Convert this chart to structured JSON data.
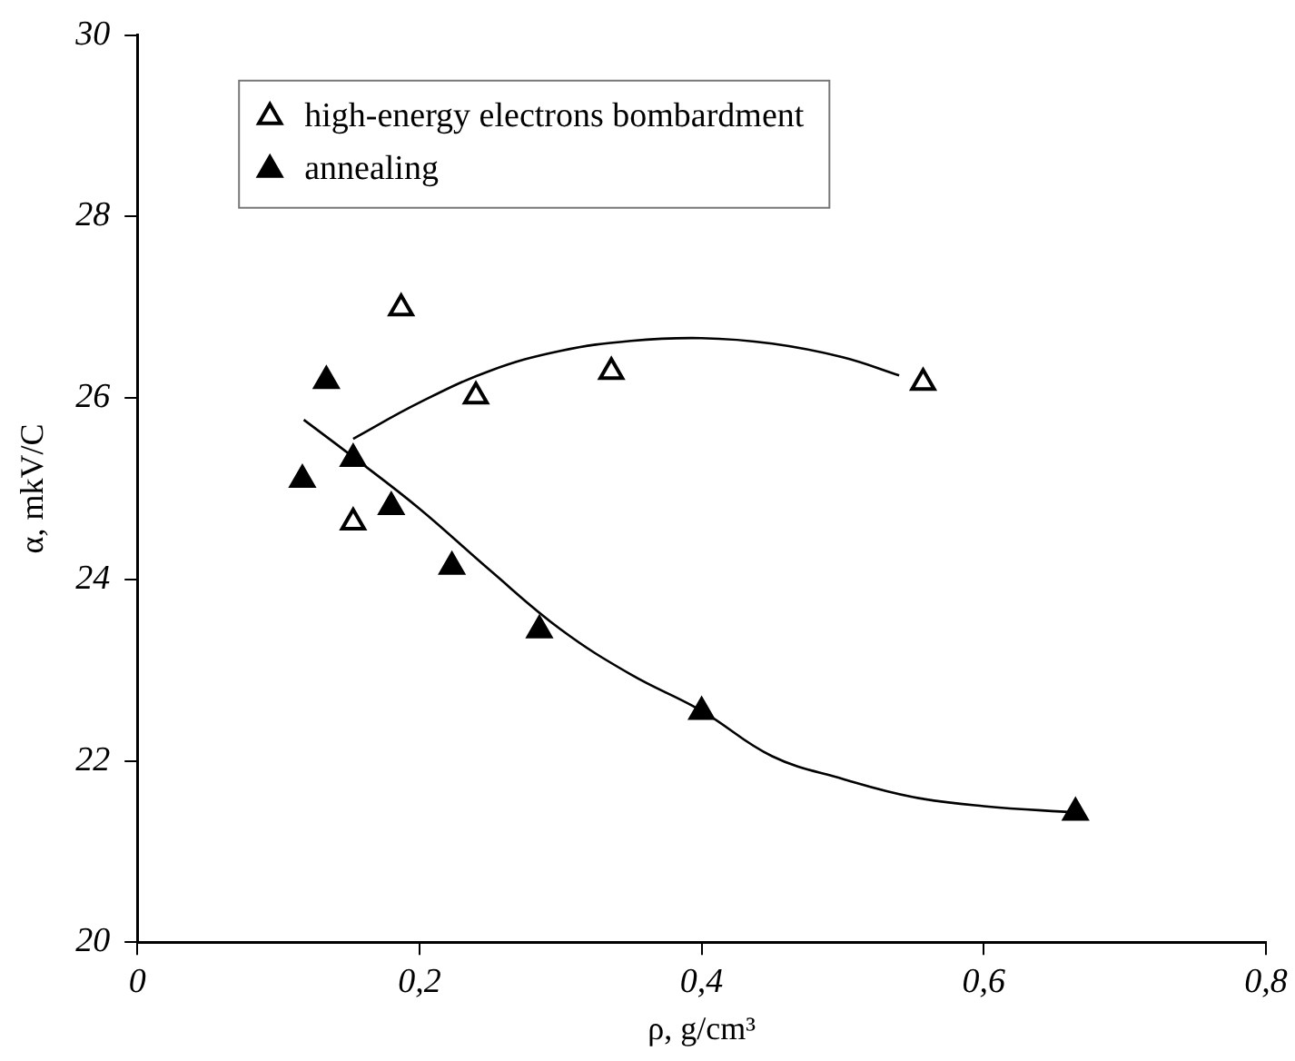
{
  "chart_data": {
    "type": "scatter",
    "xlabel": "ρ, g/cm³",
    "ylabel": "α, mkV/C",
    "xlim": [
      0,
      0.8
    ],
    "xticks": [
      {
        "value": 0,
        "label": "0"
      },
      {
        "value": 0.2,
        "label": "0,2"
      },
      {
        "value": 0.4,
        "label": "0,4"
      },
      {
        "value": 0.6,
        "label": "0,6"
      },
      {
        "value": 0.8,
        "label": "0,8"
      }
    ],
    "ylim": [
      20,
      30
    ],
    "yticks": [
      20,
      22,
      24,
      26,
      28,
      30
    ],
    "grid": false,
    "legend": "top",
    "marker": "triangle",
    "series": [
      {
        "name": "high-energy electrons bombardment",
        "color": "#ffffff",
        "x": [
          0.153,
          0.187,
          0.24,
          0.336,
          0.557
        ],
        "values": [
          24.63,
          26.99,
          26.02,
          26.29,
          26.17
        ]
      },
      {
        "name": "annealing",
        "color": "#000000",
        "x": [
          0.117,
          0.134,
          0.153,
          0.18,
          0.223,
          0.285,
          0.4,
          0.665
        ],
        "values": [
          25.1,
          26.19,
          25.33,
          24.8,
          24.14,
          23.44,
          22.54,
          21.43
        ]
      },
      {
        "type": "line",
        "color": "#000000",
        "marker": "none",
        "x": [
          0.153,
          0.2,
          0.25,
          0.3,
          0.35,
          0.4,
          0.45,
          0.5,
          0.54
        ],
        "values": [
          25.55,
          25.95,
          26.3,
          26.52,
          26.63,
          26.66,
          26.6,
          26.45,
          26.25
        ]
      },
      {
        "type": "line",
        "color": "#000000",
        "marker": "none",
        "x": [
          0.118,
          0.153,
          0.2,
          0.25,
          0.3,
          0.35,
          0.4,
          0.45,
          0.5,
          0.55,
          0.6,
          0.665
        ],
        "values": [
          25.76,
          25.35,
          24.78,
          24.1,
          23.45,
          22.95,
          22.55,
          22.05,
          21.8,
          21.6,
          21.5,
          21.43
        ]
      }
    ]
  }
}
